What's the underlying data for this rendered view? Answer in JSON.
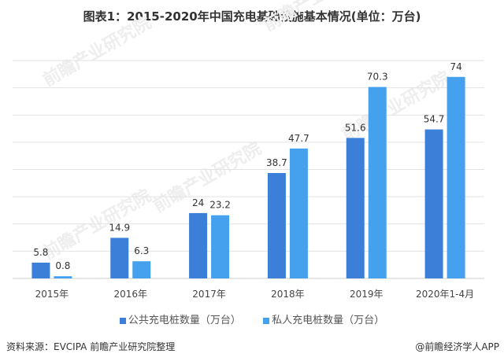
{
  "chart_data": {
    "type": "bar",
    "title": "图表1：2015-2020年中国充电基础设施基本情况(单位：万台)",
    "categories": [
      "2015年",
      "2016年",
      "2017年",
      "2018年",
      "2019年",
      "2020年1-4月"
    ],
    "series": [
      {
        "name": "公共充电桩数量（万台）",
        "color": "#3b7fd8",
        "values": [
          5.8,
          14.9,
          24,
          38.7,
          51.6,
          54.7
        ]
      },
      {
        "name": "私人充电桩数量（万台）",
        "color": "#45a1ee",
        "values": [
          0.8,
          6.3,
          23.2,
          47.7,
          70.3,
          74
        ]
      }
    ],
    "ylim": [
      0,
      80
    ],
    "ytick_step": 10,
    "grid": true,
    "legend": "bottom",
    "xlabel": "",
    "ylabel": ""
  },
  "footer": {
    "source": "资料来源：EVCIPA 前瞻产业研究院整理",
    "credit": "@前瞻经济学人APP"
  },
  "watermark": "前瞻产业研究院"
}
